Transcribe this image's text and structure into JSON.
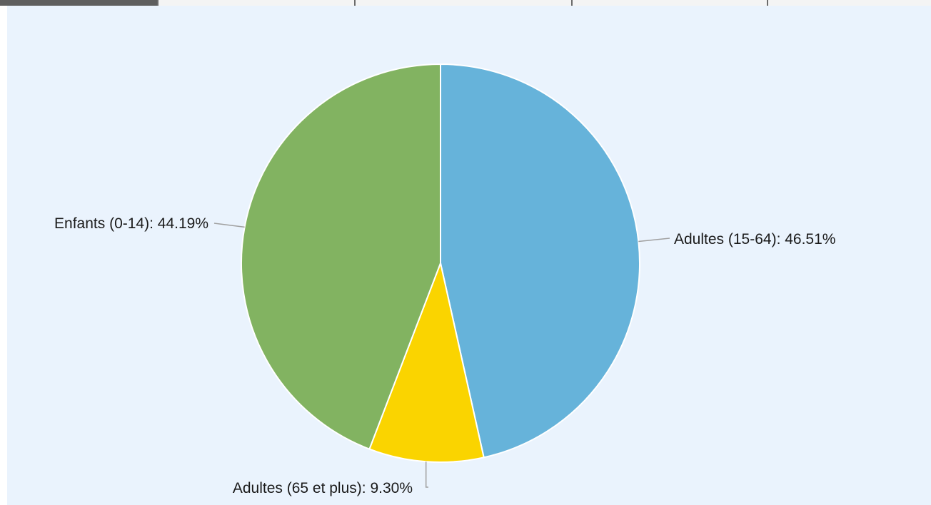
{
  "tabs": [
    {
      "label": ""
    },
    {
      "label": ""
    },
    {
      "label": ""
    },
    {
      "label": ""
    },
    {
      "label": ""
    }
  ],
  "chart_data": {
    "type": "pie",
    "categories": [
      "Adultes (15-64)",
      "Adultes (65 et plus)",
      "Enfants (0-14)"
    ],
    "values": [
      46.51,
      9.3,
      44.19
    ],
    "labels": [
      "Adultes (15-64): 46.51%",
      "Adultes (65 et plus): 9.30%",
      "Enfants (0-14): 44.19%"
    ],
    "colors": [
      "#66b3da",
      "#fad400",
      "#82b361"
    ],
    "start_angle": "top",
    "direction": "clockwise",
    "title": "",
    "legend": "none"
  }
}
